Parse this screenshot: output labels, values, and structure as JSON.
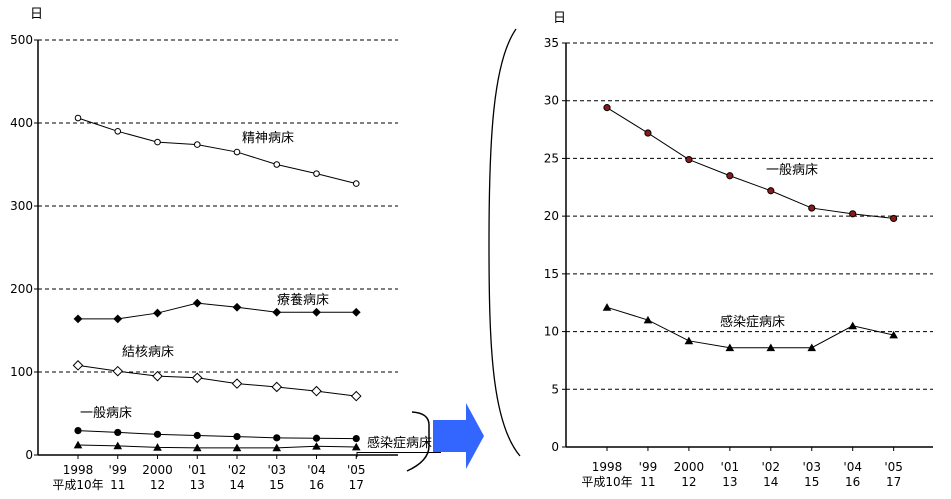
{
  "figure": {
    "description_visible_text_only": true
  },
  "chart_data": [
    {
      "id": "left-overview-chart",
      "type": "line",
      "unit_label": "日",
      "ylim": [
        0,
        500
      ],
      "ytick_step": 100,
      "grid": "dashed-horizontal",
      "legend_position": "inline-labels",
      "x_labels_row1": [
        "1998",
        "'99",
        "2000",
        "'01",
        "'02",
        "'03",
        "'04",
        "'05"
      ],
      "x_labels_row2": [
        "平成10年",
        "11",
        "12",
        "13",
        "14",
        "15",
        "16",
        "17"
      ],
      "series": [
        {
          "key": "psychiatric-beds",
          "name": "精神病床",
          "marker": "circle-open",
          "color": "#000000",
          "values": [
            406,
            390,
            377,
            374,
            365,
            350,
            339,
            327
          ]
        },
        {
          "key": "long-term-care-beds",
          "name": "療養病床",
          "marker": "diamond-filled",
          "color": "#000000",
          "values": [
            164,
            164,
            171,
            183,
            178,
            172,
            172,
            172
          ]
        },
        {
          "key": "tuberculosis-beds",
          "name": "結核病床",
          "marker": "diamond-open",
          "color": "#000000",
          "values": [
            108,
            101,
            95,
            93,
            86,
            82,
            77,
            71
          ]
        },
        {
          "key": "general-beds",
          "name": "一般病床",
          "marker": "circle-filled",
          "color": "#000000",
          "values": [
            29.4,
            27.2,
            24.9,
            23.5,
            22.2,
            20.7,
            20.2,
            19.8
          ]
        },
        {
          "key": "infectious-disease-beds",
          "name": "感染症病床",
          "marker": "triangle-filled",
          "color": "#000000",
          "values": [
            12.1,
            11.0,
            9.2,
            8.6,
            8.6,
            8.6,
            10.5,
            9.7
          ]
        }
      ]
    },
    {
      "id": "right-detail-chart",
      "type": "line",
      "unit_label": "日",
      "ylim": [
        0,
        35
      ],
      "ytick_step": 5,
      "grid": "dashed-horizontal",
      "legend_position": "inline-labels",
      "x_labels_row1": [
        "1998",
        "'99",
        "2000",
        "'01",
        "'02",
        "'03",
        "'04",
        "'05"
      ],
      "x_labels_row2": [
        "平成10年",
        "11",
        "12",
        "13",
        "14",
        "15",
        "16",
        "17"
      ],
      "series": [
        {
          "key": "general-beds",
          "name": "一般病床",
          "marker": "circle-filled",
          "color": "#8B1A1A",
          "values": [
            29.4,
            27.2,
            24.9,
            23.5,
            22.2,
            20.7,
            20.2,
            19.8
          ]
        },
        {
          "key": "infectious-disease-beds",
          "name": "感染症病床",
          "marker": "triangle-filled",
          "color": "#000000",
          "values": [
            12.1,
            11.0,
            9.2,
            8.6,
            8.6,
            8.6,
            10.5,
            9.7
          ]
        }
      ]
    }
  ],
  "decorations": {
    "grouping_bracket_color": "#000000",
    "zoom_arrow_color": "#3366FF",
    "parenthesis_color": "#000000",
    "leader_line_color": "#000000"
  }
}
